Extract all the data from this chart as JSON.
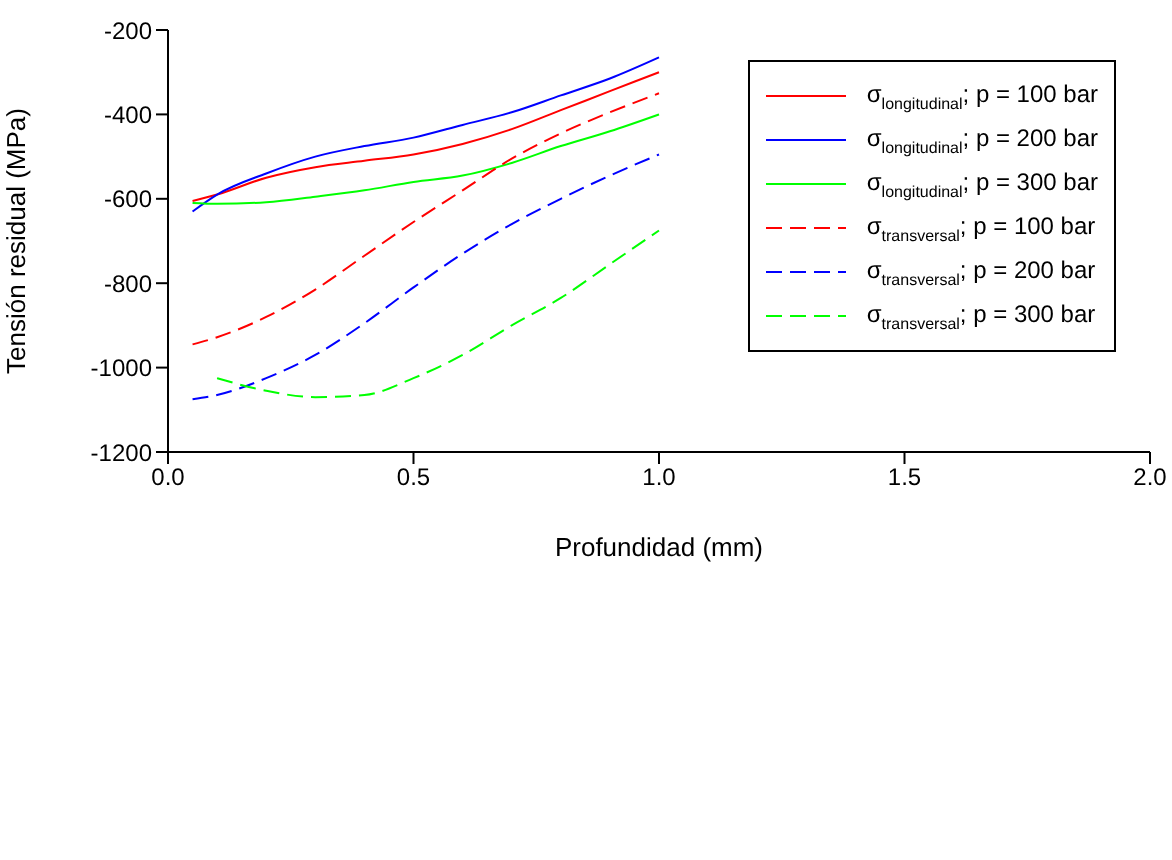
{
  "chart_data": {
    "type": "line",
    "xlabel": "Profundidad (mm)",
    "ylabel": "Tensión residual (MPa)",
    "x": [
      0.05,
      0.1,
      0.2,
      0.3,
      0.4,
      0.5,
      0.6,
      0.7,
      0.8,
      0.9,
      1.0
    ],
    "series": [
      {
        "name": "σ$_{longitudinal}$; p = 100 bar",
        "color": "#ff0000",
        "line_style": "solid",
        "values": [
          -605,
          -590,
          -550,
          -525,
          -510,
          -495,
          -470,
          -435,
          -390,
          -345,
          -300
        ]
      },
      {
        "name": "σ$_{longitudinal}$; p = 200 bar",
        "color": "#0000ff",
        "line_style": "solid",
        "values": [
          -630,
          -590,
          -540,
          -500,
          -475,
          -455,
          -425,
          -395,
          -355,
          -315,
          -265
        ]
      },
      {
        "name": "σ$_{longitudinal}$; p = 300 bar",
        "color": "#00ff00",
        "line_style": "solid",
        "values": [
          -610,
          -612,
          -608,
          -595,
          -580,
          -560,
          -545,
          -515,
          -475,
          -440,
          -400
        ]
      },
      {
        "name": "σ$_{transversal}$; p = 100 bar",
        "color": "#ff0000",
        "line_style": "dashed",
        "values": [
          -945,
          -928,
          -880,
          -815,
          -735,
          -655,
          -580,
          -505,
          -445,
          -395,
          -350
        ]
      },
      {
        "name": "σ$_{transversal}$; p = 200 bar",
        "color": "#0000ff",
        "line_style": "dashed",
        "values": [
          -1075,
          -1065,
          -1025,
          -970,
          -895,
          -810,
          -730,
          -660,
          -600,
          -545,
          -495
        ]
      },
      {
        "name": "σ$_{transversal}$; p = 300 bar",
        "color": "#00ff00",
        "line_style": "dashed",
        "values": [
          null,
          -1025,
          -1055,
          -1070,
          -1065,
          -1025,
          -970,
          -900,
          -835,
          -755,
          -675
        ]
      }
    ],
    "xlim": [
      0,
      2
    ],
    "xticks": [
      {
        "value": 0,
        "label": "0.0"
      },
      {
        "value": 0.5,
        "label": "0.5"
      },
      {
        "value": 1,
        "label": "1.0"
      },
      {
        "value": 1.5,
        "label": "1.5"
      },
      {
        "value": 2,
        "label": "2.0"
      }
    ],
    "ylim": [
      -1200,
      -200
    ],
    "yticks": [
      -1200,
      -1000,
      -800,
      -600,
      -400,
      -200
    ],
    "grid": false,
    "legend": "top right",
    "marker": "none"
  }
}
